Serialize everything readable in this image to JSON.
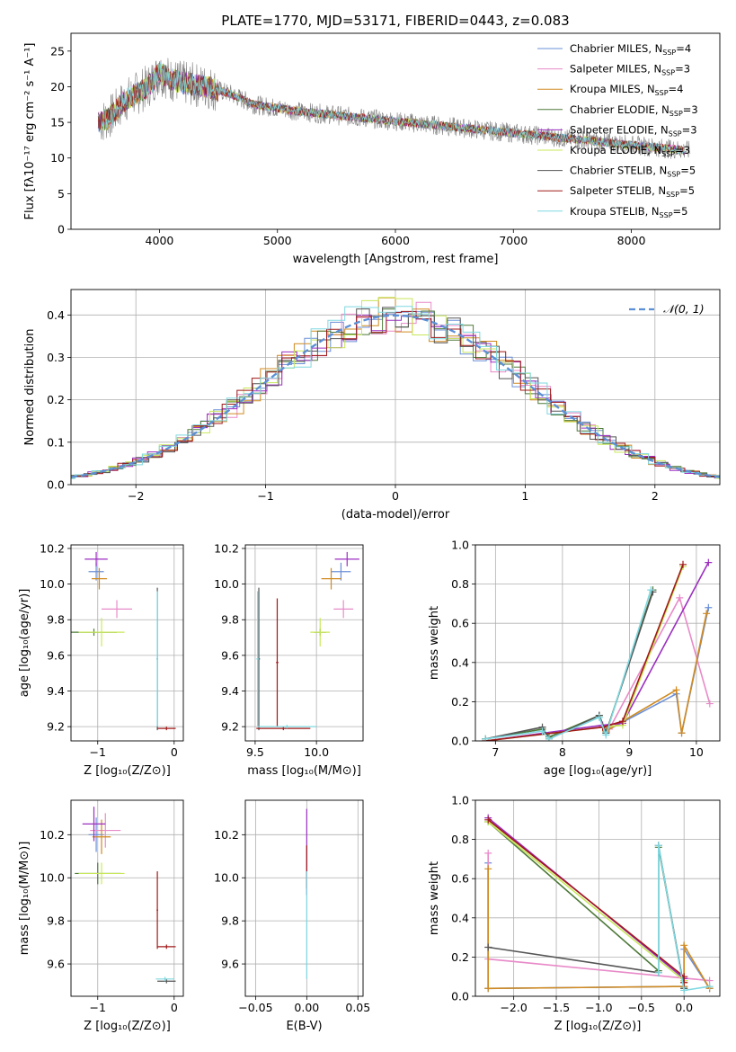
{
  "title": "PLATE=1770, MJD=53171, FIBERID=0443, z=0.083",
  "models": [
    {
      "name": "Chabrier MILES",
      "nssp": "4",
      "color": "#6a8fd8"
    },
    {
      "name": "Salpeter MILES",
      "nssp": "3",
      "color": "#e88ac8"
    },
    {
      "name": "Kroupa MILES",
      "nssp": "4",
      "color": "#d08a20"
    },
    {
      "name": "Chabrier ELODIE",
      "nssp": "3",
      "color": "#4e7a3a"
    },
    {
      "name": "Salpeter ELODIE",
      "nssp": "3",
      "color": "#9b2fc0"
    },
    {
      "name": "Kroupa ELODIE",
      "nssp": "3",
      "color": "#c8e85a"
    },
    {
      "name": "Chabrier STELIB",
      "nssp": "5",
      "color": "#555555"
    },
    {
      "name": "Salpeter STELIB",
      "nssp": "5",
      "color": "#a01818"
    },
    {
      "name": "Kroupa STELIB",
      "nssp": "5",
      "color": "#7fd8e0"
    }
  ],
  "labels": {
    "nssp_prefix": "N",
    "nssp_sub": "SSP",
    "nssp_eq": "="
  },
  "chart_data": [
    {
      "id": "spectrum",
      "type": "line",
      "xlabel": "wavelength [Angstrom, rest frame]",
      "ylabel": "Flux [fλ10⁻¹⁷ erg cm⁻² s⁻¹ A⁻¹]",
      "xlim": [
        3250,
        8750
      ],
      "ylim": [
        0,
        27.5
      ],
      "xticks": [
        4000,
        5000,
        6000,
        7000,
        8000
      ],
      "yticks": [
        0,
        5,
        10,
        15,
        20,
        25
      ],
      "continuum": {
        "x": [
          3500,
          3600,
          3700,
          3800,
          3900,
          4000,
          4100,
          4200,
          4400,
          4600,
          4800,
          5000,
          5200,
          5500,
          5800,
          6100,
          6400,
          6700,
          7000,
          7300,
          7600,
          7900,
          8200,
          8500
        ],
        "y": [
          15,
          16,
          18,
          19,
          20,
          22,
          21,
          20.5,
          20,
          19,
          17.5,
          17,
          16.5,
          16,
          15.5,
          15,
          14.5,
          14,
          13.5,
          13,
          12.5,
          12,
          11.5,
          11
        ]
      }
    },
    {
      "id": "residuals",
      "type": "line",
      "xlabel": "(data-model)/error",
      "ylabel": "Normed distribution",
      "xlim": [
        -2.5,
        2.5
      ],
      "ylim": [
        0,
        0.46
      ],
      "xticks": [
        -2,
        -1,
        0,
        1,
        2
      ],
      "yticks": [
        0.0,
        0.1,
        0.2,
        0.3,
        0.4
      ],
      "legend": "𝒩(0, 1)",
      "normal_color": "#5b8fd6"
    },
    {
      "id": "z-age",
      "type": "scatter",
      "xlabel": "Z [log₁₀(Z/Z⊙)]",
      "ylabel": "age  [log₁₀(age/yr)]",
      "xlim": [
        -1.35,
        0.12
      ],
      "ylim": [
        9.12,
        10.22
      ],
      "xticks": [
        -1,
        0
      ],
      "yticks": [
        9.2,
        9.4,
        9.6,
        9.8,
        10.0,
        10.2
      ],
      "points": [
        {
          "x": -1.02,
          "y": 10.07,
          "xerr": 0.1,
          "yerr": 0.05,
          "model": 0
        },
        {
          "x": -0.75,
          "y": 9.86,
          "xerr": 0.2,
          "yerr": 0.05,
          "model": 1
        },
        {
          "x": -0.98,
          "y": 10.03,
          "xerr": 0.1,
          "yerr": 0.06,
          "model": 2
        },
        {
          "x": -1.05,
          "y": 9.73,
          "xerr": 0.3,
          "yerr": 0.02,
          "model": 3
        },
        {
          "x": -1.02,
          "y": 10.14,
          "xerr": 0.15,
          "yerr": 0.04,
          "model": 4
        },
        {
          "x": -0.95,
          "y": 9.73,
          "xerr": 0.3,
          "yerr": 0.08,
          "model": 5
        },
        {
          "x": -0.22,
          "y": 9.58,
          "xerr": 0.01,
          "yerr": 0.4,
          "model": 6
        },
        {
          "x": -0.1,
          "y": 9.19,
          "xerr": 0.12,
          "yerr": 0.01,
          "model": 7
        },
        {
          "x": -0.22,
          "y": 9.58,
          "xerr": 0.01,
          "yerr": 0.38,
          "model": 8
        }
      ]
    },
    {
      "id": "mass-age",
      "type": "scatter",
      "xlabel": "mass [log₁₀(M/M⊙)]",
      "ylabel": "",
      "xlim": [
        9.42,
        10.38
      ],
      "ylim": [
        9.12,
        10.22
      ],
      "xticks": [
        9.5,
        10.0
      ],
      "yticks": [
        9.2,
        9.4,
        9.6,
        9.8,
        10.0,
        10.2
      ],
      "points": [
        {
          "x": 10.2,
          "y": 10.07,
          "xerr": 0.08,
          "yerr": 0.05,
          "model": 0
        },
        {
          "x": 10.22,
          "y": 9.86,
          "xerr": 0.08,
          "yerr": 0.05,
          "model": 1
        },
        {
          "x": 10.12,
          "y": 10.03,
          "xerr": 0.08,
          "yerr": 0.06,
          "model": 2
        },
        {
          "x": 10.03,
          "y": 9.73,
          "xerr": 0.05,
          "yerr": 0.02,
          "model": 3
        },
        {
          "x": 10.25,
          "y": 10.14,
          "xerr": 0.1,
          "yerr": 0.04,
          "model": 4
        },
        {
          "x": 10.03,
          "y": 9.73,
          "xerr": 0.08,
          "yerr": 0.08,
          "model": 5
        },
        {
          "x": 9.53,
          "y": 9.58,
          "xerr": 0.01,
          "yerr": 0.4,
          "model": 6
        },
        {
          "x": 9.68,
          "y": 9.56,
          "xerr": 0.01,
          "yerr": 0.36,
          "model": 7
        },
        {
          "x": 9.52,
          "y": 9.58,
          "xerr": 0.01,
          "yerr": 0.38,
          "model": 8
        },
        {
          "x": 9.73,
          "y": 9.19,
          "xerr": 0.22,
          "yerr": 0.01,
          "model": 7
        },
        {
          "x": 9.76,
          "y": 9.2,
          "xerr": 0.24,
          "yerr": 0.01,
          "model": 8
        }
      ]
    },
    {
      "id": "age-weight",
      "type": "line",
      "xlabel": "age  [log₁₀(age/yr)]",
      "ylabel": "mass weight",
      "xlim": [
        6.7,
        10.35
      ],
      "ylim": [
        0,
        1.0
      ],
      "xticks": [
        7,
        8,
        9,
        10
      ],
      "yticks": [
        0.0,
        0.2,
        0.4,
        0.6,
        0.8,
        1.0
      ],
      "series": [
        {
          "model": 0,
          "x": [
            8.65,
            9.7,
            9.78,
            10.18
          ],
          "y": [
            0.05,
            0.24,
            0.04,
            0.68
          ]
        },
        {
          "model": 1,
          "x": [
            8.7,
            9.75,
            10.2
          ],
          "y": [
            0.06,
            0.73,
            0.19
          ]
        },
        {
          "model": 2,
          "x": [
            8.65,
            9.7,
            9.78,
            10.15
          ],
          "y": [
            0.05,
            0.26,
            0.04,
            0.65
          ]
        },
        {
          "model": 3,
          "x": [
            6.85,
            7.7,
            7.8,
            8.55,
            8.65,
            9.35
          ],
          "y": [
            0.01,
            0.06,
            0.02,
            0.13,
            0.04,
            0.77
          ]
        },
        {
          "model": 4,
          "x": [
            6.85,
            8.6,
            8.9,
            10.18
          ],
          "y": [
            0.0,
            0.08,
            0.09,
            0.91
          ]
        },
        {
          "model": 5,
          "x": [
            6.85,
            8.6,
            8.9,
            9.8
          ],
          "y": [
            0.0,
            0.07,
            0.08,
            0.89
          ]
        },
        {
          "model": 6,
          "x": [
            6.85,
            7.7,
            7.8,
            8.55,
            8.65,
            9.35
          ],
          "y": [
            0.01,
            0.07,
            0.01,
            0.13,
            0.04,
            0.76
          ]
        },
        {
          "model": 7,
          "x": [
            6.85,
            8.6,
            8.9,
            9.8
          ],
          "y": [
            0.0,
            0.07,
            0.1,
            0.9
          ]
        },
        {
          "model": 8,
          "x": [
            6.85,
            7.7,
            7.8,
            8.55,
            8.65,
            9.32
          ],
          "y": [
            0.01,
            0.05,
            0.01,
            0.12,
            0.03,
            0.77
          ]
        }
      ]
    },
    {
      "id": "z-mass",
      "type": "scatter",
      "xlabel": "Z [log₁₀(Z/Z⊙)]",
      "ylabel": "mass [log₁₀(M/M⊙)]",
      "xlim": [
        -1.35,
        0.12
      ],
      "ylim": [
        9.45,
        10.36
      ],
      "xticks": [
        -1,
        0
      ],
      "yticks": [
        9.6,
        9.8,
        10.0,
        10.2
      ],
      "points": [
        {
          "x": -1.02,
          "y": 10.2,
          "xerr": 0.1,
          "yerr": 0.08,
          "model": 0
        },
        {
          "x": -0.9,
          "y": 10.22,
          "xerr": 0.2,
          "yerr": 0.08,
          "model": 1
        },
        {
          "x": -0.95,
          "y": 10.19,
          "xerr": 0.12,
          "yerr": 0.08,
          "model": 2
        },
        {
          "x": -1.0,
          "y": 10.02,
          "xerr": 0.3,
          "yerr": 0.05,
          "model": 3
        },
        {
          "x": -1.05,
          "y": 10.25,
          "xerr": 0.15,
          "yerr": 0.08,
          "model": 4
        },
        {
          "x": -0.95,
          "y": 10.02,
          "xerr": 0.3,
          "yerr": 0.05,
          "model": 5
        },
        {
          "x": -0.1,
          "y": 9.52,
          "xerr": 0.12,
          "yerr": 0.01,
          "model": 6
        },
        {
          "x": -0.1,
          "y": 9.68,
          "xerr": 0.12,
          "yerr": 0.01,
          "model": 7
        },
        {
          "x": -0.12,
          "y": 9.53,
          "xerr": 0.12,
          "yerr": 0.01,
          "model": 8
        },
        {
          "x": -0.22,
          "y": 9.85,
          "xerr": 0.01,
          "yerr": 0.18,
          "model": 7
        }
      ]
    },
    {
      "id": "ebv-mass",
      "type": "scatter",
      "xlabel": "E(B-V)",
      "ylabel": "",
      "xlim": [
        -0.06,
        0.055
      ],
      "ylim": [
        9.45,
        10.36
      ],
      "xticks": [
        -0.05,
        0.0,
        0.05
      ],
      "ytick_labels": [
        "-0.05",
        "0.00",
        "0.05"
      ],
      "yticks": [
        9.6,
        9.8,
        10.0,
        10.2
      ],
      "points": [
        {
          "x": 0.0,
          "y": 10.12,
          "xerr": 0.0,
          "yerr": 0.2,
          "model": 4
        },
        {
          "x": 0.0,
          "y": 10.05,
          "xerr": 0.0,
          "yerr": 0.1,
          "model": 7
        },
        {
          "x": 0.0,
          "y": 9.78,
          "xerr": 0.0,
          "yerr": 0.25,
          "model": 8
        }
      ]
    },
    {
      "id": "z-weight",
      "type": "line",
      "xlabel": "Z [log₁₀(Z/Z⊙)]",
      "ylabel": "mass weight",
      "xlim": [
        -2.45,
        0.42
      ],
      "ylim": [
        0,
        1.0
      ],
      "xticks": [
        -2.0,
        -1.5,
        -1.0,
        -0.5,
        0.0
      ],
      "yticks": [
        0.0,
        0.2,
        0.4,
        0.6,
        0.8,
        1.0
      ],
      "series": [
        {
          "model": 0,
          "x": [
            -2.3,
            -2.3,
            0.0,
            0.0,
            0.3
          ],
          "y": [
            0.68,
            0.04,
            0.05,
            0.24,
            0.04
          ]
        },
        {
          "model": 1,
          "x": [
            -2.3,
            -2.3,
            0.3
          ],
          "y": [
            0.73,
            0.19,
            0.08
          ]
        },
        {
          "model": 2,
          "x": [
            -2.3,
            -2.3,
            0.0,
            0.0,
            0.3
          ],
          "y": [
            0.65,
            0.04,
            0.05,
            0.26,
            0.04
          ]
        },
        {
          "model": 3,
          "x": [
            -2.3,
            -0.3,
            -0.3,
            0.0
          ],
          "y": [
            0.89,
            0.13,
            0.76,
            0.04
          ]
        },
        {
          "model": 4,
          "x": [
            -2.3,
            0.0,
            0.0
          ],
          "y": [
            0.91,
            0.09,
            0.08
          ]
        },
        {
          "model": 5,
          "x": [
            -2.3,
            0.0,
            0.0
          ],
          "y": [
            0.89,
            0.08,
            0.07
          ]
        },
        {
          "model": 6,
          "x": [
            -2.3,
            -0.3,
            -0.3,
            0.0
          ],
          "y": [
            0.25,
            0.12,
            0.77,
            0.04
          ]
        },
        {
          "model": 7,
          "x": [
            -2.3,
            0.0,
            0.0
          ],
          "y": [
            0.9,
            0.1,
            0.07
          ]
        },
        {
          "model": 8,
          "x": [
            -0.3,
            -0.3,
            0.0,
            0.3
          ],
          "y": [
            0.12,
            0.77,
            0.03,
            0.05
          ]
        }
      ]
    }
  ]
}
